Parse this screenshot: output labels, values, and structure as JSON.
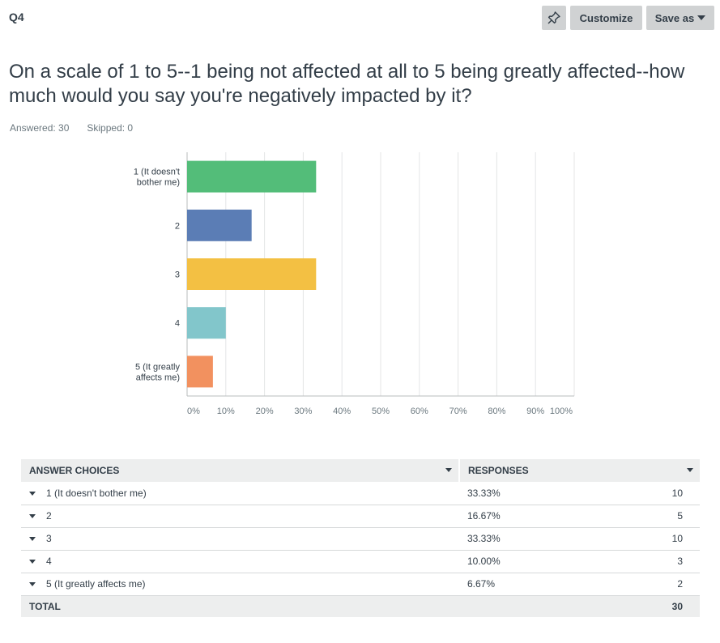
{
  "header": {
    "question_number": "Q4",
    "customize_label": "Customize",
    "save_as_label": "Save as",
    "pin_icon": "pin-icon"
  },
  "question": {
    "text": "On a scale of 1 to 5--1 being not affected at all to 5 being greatly affected--how much would you say you're negatively impacted by it?",
    "answered": "Answered: 30",
    "skipped": "Skipped: 0"
  },
  "colors": {
    "bar1": "#53bd79",
    "bar2": "#5b7db5",
    "bar3": "#f3c043",
    "bar4": "#82c6cb",
    "bar5": "#f2915f",
    "grid": "#e4e5e6",
    "axis": "#b9bcbe"
  },
  "chart_data": {
    "type": "bar",
    "orientation": "horizontal",
    "categories": [
      "1 (It doesn't bother me)",
      "2",
      "3",
      "4",
      "5 (It greatly affects me)"
    ],
    "category_label_lines": [
      [
        "1 (It doesn't",
        "bother me)"
      ],
      [
        "2"
      ],
      [
        "3"
      ],
      [
        "4"
      ],
      [
        "5 (It greatly",
        "affects me)"
      ]
    ],
    "values": [
      33.33,
      16.67,
      33.33,
      10.0,
      6.67
    ],
    "xlim": [
      0,
      100
    ],
    "xticks": [
      "0%",
      "10%",
      "20%",
      "30%",
      "40%",
      "50%",
      "60%",
      "70%",
      "80%",
      "90%",
      "100%"
    ],
    "grid": true,
    "title": "",
    "xlabel": "",
    "ylabel": ""
  },
  "table": {
    "col_choices": "ANSWER CHOICES",
    "col_responses": "RESPONSES",
    "rows": [
      {
        "choice": "1 (It doesn't bother me)",
        "percent": "33.33%",
        "count": "10"
      },
      {
        "choice": "2",
        "percent": "16.67%",
        "count": "5"
      },
      {
        "choice": "3",
        "percent": "33.33%",
        "count": "10"
      },
      {
        "choice": "4",
        "percent": "10.00%",
        "count": "3"
      },
      {
        "choice": "5 (It greatly affects me)",
        "percent": "6.67%",
        "count": "2"
      }
    ],
    "total_label": "TOTAL",
    "total_count": "30"
  }
}
